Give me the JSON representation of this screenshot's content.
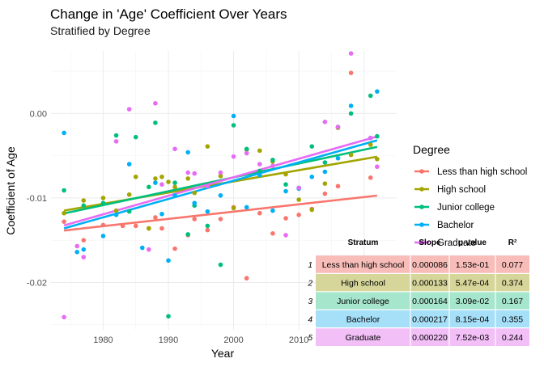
{
  "chart_data": {
    "type": "scatter",
    "title": "Change in 'Age' Coefficient Over Years",
    "subtitle": "Stratified by Degree",
    "xlabel": "Year",
    "ylabel": "Coefficient of Age",
    "xlim": [
      1972,
      2025
    ],
    "ylim": [
      -0.0256,
      0.0074
    ],
    "xticks": [
      1980,
      1990,
      2000,
      2010,
      2020
    ],
    "xtick_labels": [
      "1980",
      "1990",
      "2000",
      "2010",
      "2020"
    ],
    "yticks": [
      -0.02,
      -0.01,
      0.0
    ],
    "ytick_labels": [
      "-0.02",
      "-0.01",
      "0.00"
    ],
    "grid": true,
    "legend": {
      "title": "Degree",
      "position": "right"
    },
    "series": [
      {
        "name": "Less than high school",
        "color": "#F8766D",
        "fit": {
          "x": [
            1974,
            2022
          ],
          "y": [
            -0.01385,
            -0.00972
          ]
        },
        "x": [
          1974,
          1977,
          1980,
          1983,
          1985,
          1987,
          1988,
          1989,
          1991,
          1993,
          1994,
          1996,
          1998,
          2000,
          2002,
          2004,
          2006,
          2008,
          2010,
          2012,
          2014,
          2016,
          2018,
          2021,
          2022
        ],
        "y": [
          -0.0128,
          -0.015,
          -0.0132,
          -0.0133,
          -0.0133,
          -0.0136,
          -0.0123,
          -0.0136,
          -0.016,
          -0.0144,
          -0.0125,
          -0.0138,
          -0.0125,
          -0.0111,
          -0.0195,
          -0.0118,
          -0.0142,
          -0.0124,
          -0.012,
          -0.0113,
          -0.0095,
          -0.0086,
          0.0048,
          -0.0076,
          -0.0205
        ]
      },
      {
        "name": "High school",
        "color": "#A3A500",
        "fit": {
          "x": [
            1974,
            2022
          ],
          "y": [
            -0.01149,
            -0.00512
          ]
        },
        "x": [
          1974,
          1977,
          1980,
          1982,
          1984,
          1985,
          1987,
          1988,
          1989,
          1990,
          1991,
          1993,
          1994,
          1996,
          1998,
          2000,
          2002,
          2004,
          2006,
          2008,
          2010,
          2012,
          2014,
          2016,
          2018,
          2021,
          2022
        ],
        "y": [
          -0.0118,
          -0.0103,
          -0.01,
          -0.0115,
          -0.0096,
          -0.0075,
          -0.0136,
          -0.0077,
          -0.0075,
          -0.0081,
          -0.0087,
          -0.0077,
          -0.0094,
          -0.0039,
          -0.0074,
          -0.0112,
          -0.0043,
          -0.0044,
          -0.0057,
          -0.0072,
          -0.0102,
          -0.0114,
          -0.0083,
          -0.0017,
          -0.0049,
          -0.0037,
          -0.0054
        ]
      },
      {
        "name": "Junior college",
        "color": "#00BF7D",
        "fit": {
          "x": [
            1974,
            2022
          ],
          "y": [
            -0.01183,
            -0.00396
          ]
        },
        "x": [
          1974,
          1977,
          1980,
          1982,
          1984,
          1985,
          1987,
          1988,
          1990,
          1991,
          1993,
          1994,
          1996,
          1998,
          2000,
          2002,
          2004,
          2006,
          2008,
          2010,
          2012,
          2014,
          2016,
          2018,
          2021,
          2022
        ],
        "y": [
          -0.0091,
          -0.0109,
          -0.0106,
          -0.0026,
          -0.0116,
          -0.0028,
          -0.0087,
          -0.0011,
          -0.024,
          -0.0082,
          -0.0143,
          -0.0109,
          -0.0133,
          -0.0179,
          -0.0014,
          -0.0042,
          -0.0068,
          -0.0055,
          -0.0084,
          -0.0088,
          -0.0039,
          -0.0058,
          -0.0016,
          0.0,
          0.0021,
          -0.0027
        ]
      },
      {
        "name": "Bachelor",
        "color": "#00B0F6",
        "fit": {
          "x": [
            1974,
            2022
          ],
          "y": [
            -0.01359,
            -0.00318
          ]
        },
        "x": [
          1974,
          1976,
          1977,
          1980,
          1982,
          1984,
          1986,
          1988,
          1989,
          1990,
          1991,
          1993,
          1994,
          1996,
          1998,
          2000,
          2002,
          2004,
          2006,
          2008,
          2010,
          2012,
          2014,
          2016,
          2018,
          2021,
          2022
        ],
        "y": [
          -0.0023,
          -0.0164,
          -0.0161,
          -0.0145,
          -0.012,
          -0.006,
          -0.0159,
          -0.0082,
          -0.0119,
          -0.0174,
          -0.0097,
          -0.0046,
          -0.0106,
          -0.0116,
          -0.0097,
          -0.0003,
          -0.0111,
          -0.0073,
          -0.0115,
          -0.0092,
          -0.0089,
          -0.0075,
          -0.0069,
          -0.0053,
          0.0009,
          -0.0029,
          0.0026
        ]
      },
      {
        "name": "Graduate",
        "color": "#E76BF3",
        "fit": {
          "x": [
            1974,
            2022
          ],
          "y": [
            -0.01325,
            -0.00273
          ]
        },
        "x": [
          1974,
          1976,
          1977,
          1982,
          1984,
          1987,
          1988,
          1989,
          1991,
          1993,
          1994,
          1996,
          1998,
          2000,
          2002,
          2004,
          2006,
          2008,
          2010,
          2014,
          2016,
          2018,
          2021,
          2022
        ],
        "y": [
          -0.0241,
          -0.0157,
          -0.017,
          -0.0033,
          0.0005,
          -0.0161,
          0.0012,
          -0.0084,
          -0.0042,
          -0.007,
          -0.0071,
          -0.0086,
          -0.007,
          -0.0051,
          -0.0047,
          -0.006,
          -0.0062,
          -0.0144,
          -0.0088,
          -0.001,
          -0.0016,
          0.0071,
          -0.0029,
          -0.0063
        ]
      }
    ]
  },
  "stats_table": {
    "headers": [
      "Stratum",
      "Slope",
      "p-value",
      "R²"
    ],
    "rows": [
      {
        "index": "1",
        "stratum": "Less than high school",
        "slope": "0.000086",
        "p_value": "1.53e-01",
        "r2": "0.077",
        "color": "#F8BDB8"
      },
      {
        "index": "2",
        "stratum": "High school",
        "slope": "0.000133",
        "p_value": "5.47e-04",
        "r2": "0.374",
        "color": "#D6D69A"
      },
      {
        "index": "3",
        "stratum": "Junior college",
        "slope": "0.000164",
        "p_value": "3.09e-02",
        "r2": "0.167",
        "color": "#A6E6CC"
      },
      {
        "index": "4",
        "stratum": "Bachelor",
        "slope": "0.000217",
        "p_value": "8.15e-04",
        "r2": "0.355",
        "color": "#A6DFF8"
      },
      {
        "index": "5",
        "stratum": "Graduate",
        "slope": "0.000220",
        "p_value": "7.52e-03",
        "r2": "0.244",
        "color": "#F2BFF7"
      }
    ]
  }
}
